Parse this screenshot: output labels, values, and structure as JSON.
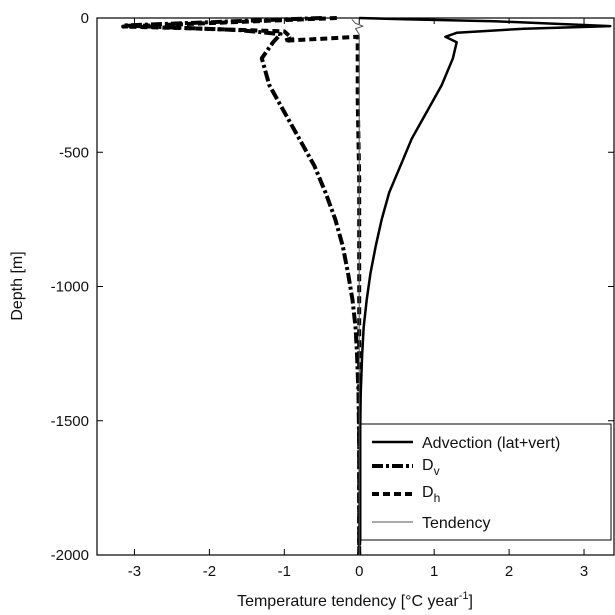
{
  "chart_data": {
    "type": "line",
    "title": "",
    "xlabel": "Temperature tendency [°C year",
    "xlabel_sup": "-1",
    "xlabel_suffix": "]",
    "ylabel": "Depth [m]",
    "xlim": [
      -3.5,
      3.4
    ],
    "ylim": [
      -2000,
      0
    ],
    "xticks": [
      -3,
      -2,
      -1,
      0,
      1,
      2,
      3
    ],
    "xtick_labels": [
      "-3",
      "-2",
      "-1",
      "0",
      "1",
      "2",
      "3"
    ],
    "yticks": [
      0,
      -500,
      -1000,
      -1500,
      -2000
    ],
    "ytick_labels": [
      "0",
      "-500",
      "-1000",
      "-1500",
      "-2000"
    ],
    "grid": false,
    "legend_position": "bottom-right",
    "series": [
      {
        "key": "advection",
        "name": "Advection (lat+vert)",
        "color": "#000000",
        "style": "solid",
        "width": 2.5,
        "points": [
          [
            0,
            0
          ],
          [
            0.6,
            -5
          ],
          [
            1.8,
            -12
          ],
          [
            3.35,
            -30
          ],
          [
            2.2,
            -40
          ],
          [
            1.3,
            -55
          ],
          [
            1.15,
            -70
          ],
          [
            1.3,
            -90
          ],
          [
            1.25,
            -150
          ],
          [
            1.1,
            -250
          ],
          [
            0.9,
            -350
          ],
          [
            0.7,
            -450
          ],
          [
            0.55,
            -550
          ],
          [
            0.4,
            -650
          ],
          [
            0.3,
            -750
          ],
          [
            0.22,
            -850
          ],
          [
            0.15,
            -950
          ],
          [
            0.1,
            -1050
          ],
          [
            0.06,
            -1150
          ],
          [
            0.04,
            -1250
          ],
          [
            0.02,
            -1400
          ],
          [
            0.01,
            -1600
          ],
          [
            0.0,
            -2000
          ]
        ]
      },
      {
        "key": "dv",
        "name": "D",
        "name_sub": "v",
        "color": "#000000",
        "style": "dashdot",
        "width": 4,
        "points": [
          [
            -0.5,
            0
          ],
          [
            -3.15,
            -28
          ],
          [
            -1.6,
            -45
          ],
          [
            -1.05,
            -60
          ],
          [
            -1.15,
            -90
          ],
          [
            -1.3,
            -150
          ],
          [
            -1.2,
            -250
          ],
          [
            -1.0,
            -350
          ],
          [
            -0.8,
            -450
          ],
          [
            -0.6,
            -550
          ],
          [
            -0.45,
            -650
          ],
          [
            -0.32,
            -750
          ],
          [
            -0.22,
            -850
          ],
          [
            -0.15,
            -950
          ],
          [
            -0.09,
            -1050
          ],
          [
            -0.05,
            -1150
          ],
          [
            -0.03,
            -1250
          ],
          [
            -0.01,
            -1400
          ],
          [
            0.0,
            -1600
          ],
          [
            0.0,
            -2000
          ]
        ]
      },
      {
        "key": "dh",
        "name": "D",
        "name_sub": "h",
        "color": "#000000",
        "style": "dashed",
        "width": 4,
        "points": [
          [
            -0.3,
            0
          ],
          [
            -3.15,
            -32
          ],
          [
            -2.3,
            -38
          ],
          [
            -1.0,
            -50
          ],
          [
            -0.9,
            -75
          ],
          [
            -1.0,
            -85
          ],
          [
            -0.02,
            -70
          ],
          [
            -0.02,
            -300
          ],
          [
            0.0,
            -600
          ],
          [
            0.0,
            -1000
          ],
          [
            0.0,
            -2000
          ]
        ]
      },
      {
        "key": "tendency",
        "name": "Tendency",
        "color": "#555555",
        "style": "solid",
        "width": 1,
        "points": [
          [
            -0.1,
            -5
          ],
          [
            -0.05,
            -20
          ],
          [
            0.05,
            -30
          ],
          [
            -0.05,
            -40
          ],
          [
            0.0,
            -60
          ],
          [
            0.0,
            -200
          ],
          [
            0.0,
            -2000
          ]
        ]
      }
    ]
  }
}
